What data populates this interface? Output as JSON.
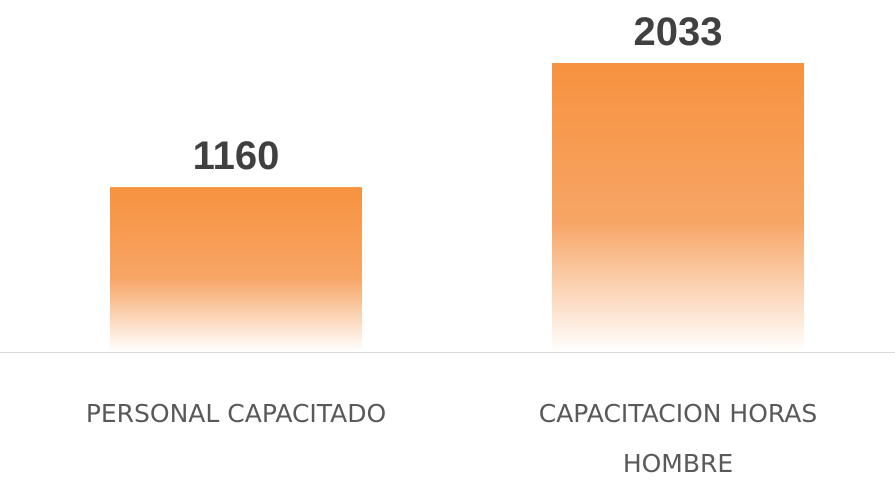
{
  "chart_data": {
    "type": "bar",
    "categories": [
      [
        "PERSONAL CAPACITADO"
      ],
      [
        "CAPACITACION HORAS",
        "HOMBRE"
      ]
    ],
    "values": [
      1160,
      2033
    ],
    "value_labels": [
      "1160",
      "2033"
    ],
    "ylim": [
      0,
      2033
    ],
    "grid": false,
    "legend": "none",
    "title": "",
    "xlabel": "",
    "ylabel": ""
  },
  "colors": {
    "bar_top": "#f7923f",
    "bar_mid": "#f7a565",
    "bar_fade": "#ffffff",
    "baseline": "#d9d9d9",
    "value_text": "#404040",
    "category_text": "#595959"
  }
}
